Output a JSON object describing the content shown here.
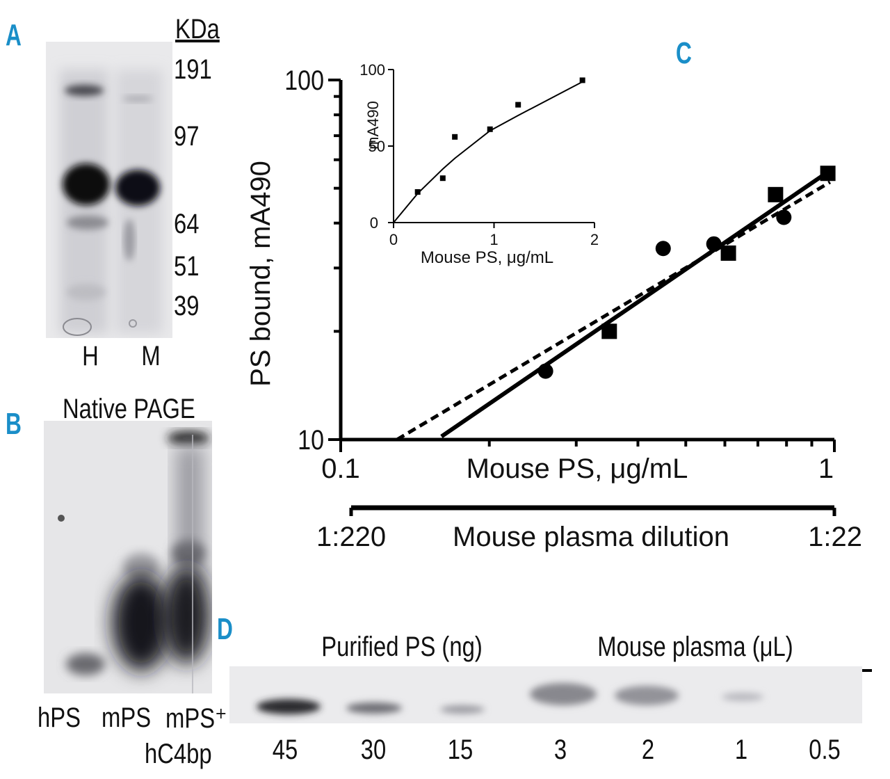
{
  "panels": {
    "A": "A",
    "B": "B",
    "C": "C",
    "D": "D"
  },
  "panel_a": {
    "unit_label": "KDa",
    "markers": [
      "191",
      "97",
      "64",
      "51",
      "39"
    ],
    "lanes": [
      "H",
      "M"
    ]
  },
  "panel_b": {
    "title": "Native PAGE",
    "lane_hps": "hPS",
    "lane_mps": "mPS",
    "lane_mps_c4bp_top": "mPS⁺",
    "lane_mps_c4bp_bottom": "hC4bp"
  },
  "panel_d": {
    "group1_label": "Purified PS (ng)",
    "group2_label": "Mouse plasma (μL)",
    "lanes": [
      "45",
      "30",
      "15",
      "3",
      "2",
      "1",
      "0.5"
    ]
  },
  "chart_data": [
    {
      "type": "scatter",
      "panel": "C",
      "ylabel": "PS bound, mA490",
      "xlabel": "Mouse PS, μg/mL",
      "x_scale": "log",
      "y_scale": "log",
      "xlim": [
        0.1,
        1
      ],
      "ylim": [
        10,
        100
      ],
      "x_ticks": [
        "0.1",
        "1"
      ],
      "y_ticks": [
        "10",
        "100"
      ],
      "secondary_axis": {
        "label": "Mouse plasma dilution",
        "left": "1:220",
        "right": "1:22"
      },
      "series": [
        {
          "marker": "square",
          "x": [
            0.35,
            0.61,
            0.76,
            0.97
          ],
          "y": [
            20.0,
            33.0,
            48.0,
            55.0
          ]
        },
        {
          "marker": "circle",
          "x": [
            0.26,
            0.45,
            0.57,
            0.79
          ],
          "y": [
            15.5,
            34.0,
            35.0,
            41.5
          ]
        }
      ],
      "fits": [
        {
          "style": "solid",
          "x": [
            0.16,
            0.98
          ],
          "y": [
            10.2,
            56.0
          ]
        },
        {
          "style": "dashed",
          "x": [
            0.13,
            0.98
          ],
          "y": [
            10.0,
            52.0
          ]
        }
      ]
    },
    {
      "type": "scatter",
      "panel": "C inset",
      "ylabel": "mA490",
      "xlabel": "Mouse PS, μg/mL",
      "xlim": [
        0,
        2
      ],
      "ylim": [
        0,
        100
      ],
      "x_ticks": [
        "0",
        "1",
        "2"
      ],
      "y_ticks": [
        "0",
        "50",
        "100"
      ],
      "series": [
        {
          "marker": "square",
          "x": [
            0.24,
            0.49,
            0.61,
            0.96,
            1.24,
            1.88
          ],
          "y": [
            20,
            29,
            56,
            61,
            77,
            93
          ]
        }
      ],
      "fit": {
        "style": "solid",
        "x": [
          0,
          0.24,
          0.49,
          0.61,
          0.96,
          1.24,
          1.88
        ],
        "y": [
          0,
          19,
          35,
          42,
          60,
          70,
          92
        ]
      }
    }
  ]
}
